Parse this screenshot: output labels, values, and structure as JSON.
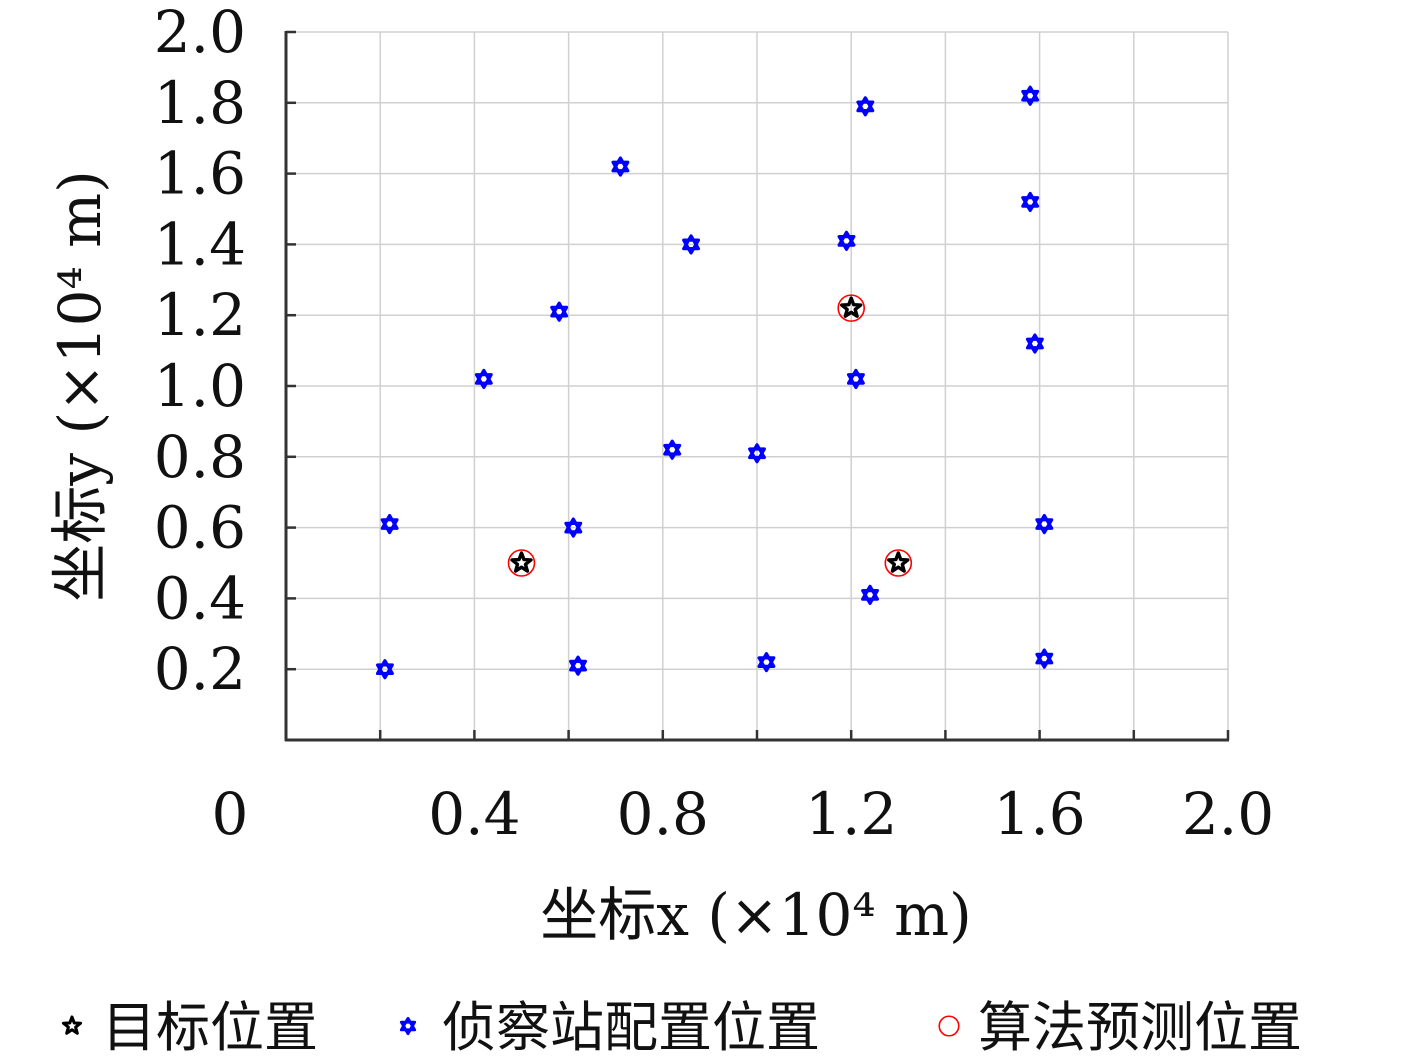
{
  "chart_data": {
    "type": "scatter",
    "title": "",
    "xlabel": "坐标x (×10⁴ m)",
    "ylabel": "坐标y (×10⁴ m)",
    "xlim": [
      0,
      2.0
    ],
    "ylim": [
      0,
      2.0
    ],
    "x_ticks": [
      0.2,
      0.4,
      0.6,
      0.8,
      1.0,
      1.2,
      1.4,
      1.6,
      1.8,
      2.0
    ],
    "x_tick_labels": [
      "0",
      "0.4",
      "0.8",
      "1.2",
      "1.6",
      "2.0"
    ],
    "x_tick_label_values": [
      0.0,
      0.4,
      0.8,
      1.2,
      1.6,
      2.0
    ],
    "y_ticks": [
      0.2,
      0.4,
      0.6,
      0.8,
      1.0,
      1.2,
      1.4,
      1.6,
      1.8,
      2.0
    ],
    "y_tick_labels": [
      "0.2",
      "0.4",
      "0.6",
      "0.8",
      "1.0",
      "1.2",
      "1.4",
      "1.6",
      "1.8",
      "2.0"
    ],
    "grid": true,
    "legend_position": "bottom",
    "series": [
      {
        "name": "目标位置",
        "marker": "star",
        "color": "#000000",
        "points": [
          [
            0.5,
            0.5
          ],
          [
            1.2,
            1.22
          ],
          [
            1.3,
            0.5
          ]
        ]
      },
      {
        "name": "侦察站配置位置",
        "marker": "hexagram",
        "color": "#0000ff",
        "points": [
          [
            0.21,
            0.2
          ],
          [
            0.22,
            0.61
          ],
          [
            0.42,
            1.02
          ],
          [
            0.58,
            1.21
          ],
          [
            0.61,
            0.6
          ],
          [
            0.62,
            0.21
          ],
          [
            0.71,
            1.62
          ],
          [
            0.82,
            0.82
          ],
          [
            0.86,
            1.4
          ],
          [
            1.0,
            0.81
          ],
          [
            1.02,
            0.22
          ],
          [
            1.19,
            1.41
          ],
          [
            1.21,
            1.02
          ],
          [
            1.23,
            1.79
          ],
          [
            1.24,
            0.41
          ],
          [
            1.58,
            1.52
          ],
          [
            1.58,
            1.82
          ],
          [
            1.59,
            1.12
          ],
          [
            1.61,
            0.61
          ],
          [
            1.61,
            0.23
          ]
        ]
      },
      {
        "name": "算法预测位置",
        "marker": "circle",
        "color": "#ff0000",
        "points": [
          [
            0.5,
            0.5
          ],
          [
            1.2,
            1.22
          ],
          [
            1.3,
            0.5
          ]
        ]
      }
    ]
  }
}
